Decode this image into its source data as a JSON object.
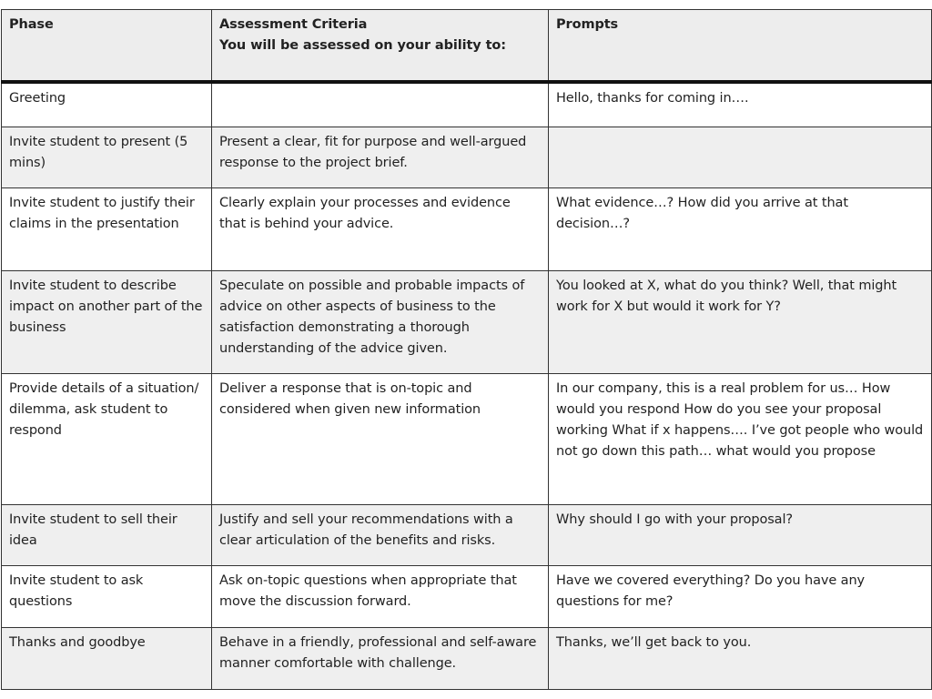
{
  "table": {
    "headers": {
      "phase": "Phase",
      "criteria_line1": "Assessment Criteria",
      "criteria_line2": "You will be assessed on your ability to:",
      "prompts": "Prompts"
    },
    "rows": [
      {
        "phase": "Greeting",
        "criteria": "",
        "prompts": "Hello, thanks for coming in…."
      },
      {
        "phase": "Invite student to present (5 mins)",
        "criteria": "Present a clear, fit for purpose and well-argued response to the project brief.",
        "prompts": ""
      },
      {
        "phase": "Invite student to justify their claims in the presentation",
        "criteria": "Clearly explain your processes and evidence that is behind your advice.",
        "prompts": "What evidence…? How did you arrive at that decision…?"
      },
      {
        "phase": "Invite student to describe impact on another part of the business",
        "criteria": "Speculate on possible and probable impacts of advice on other aspects of business to the satisfaction demonstrating a thorough understanding of the advice given.",
        "prompts": "You looked at X, what do you think? Well, that might work for X but would it work for Y?"
      },
      {
        "phase": "Provide details of a situation/ dilemma, ask student to respond",
        "criteria": "Deliver a response that is on-topic and considered when given new information",
        "prompts": "In our company, this is a real problem for us…  How would you respond How do you see your proposal working What if x happens…. I’ve got people who would not go down this path… what would you propose"
      },
      {
        "phase": "Invite student to sell their idea",
        "criteria": "Justify and sell your recommendations with a clear articulation of the benefits and risks.",
        "prompts": "Why should I go with your proposal?"
      },
      {
        "phase": "Invite student to ask questions",
        "criteria": "Ask on-topic questions when appropriate that move the discussion forward.",
        "prompts": "Have we covered everything? Do you have any questions for me?"
      },
      {
        "phase": "Thanks and goodbye",
        "criteria": "Behave in a friendly, professional and self-aware manner comfortable with challenge.",
        "prompts": "Thanks, we’ll get back to you."
      }
    ]
  }
}
